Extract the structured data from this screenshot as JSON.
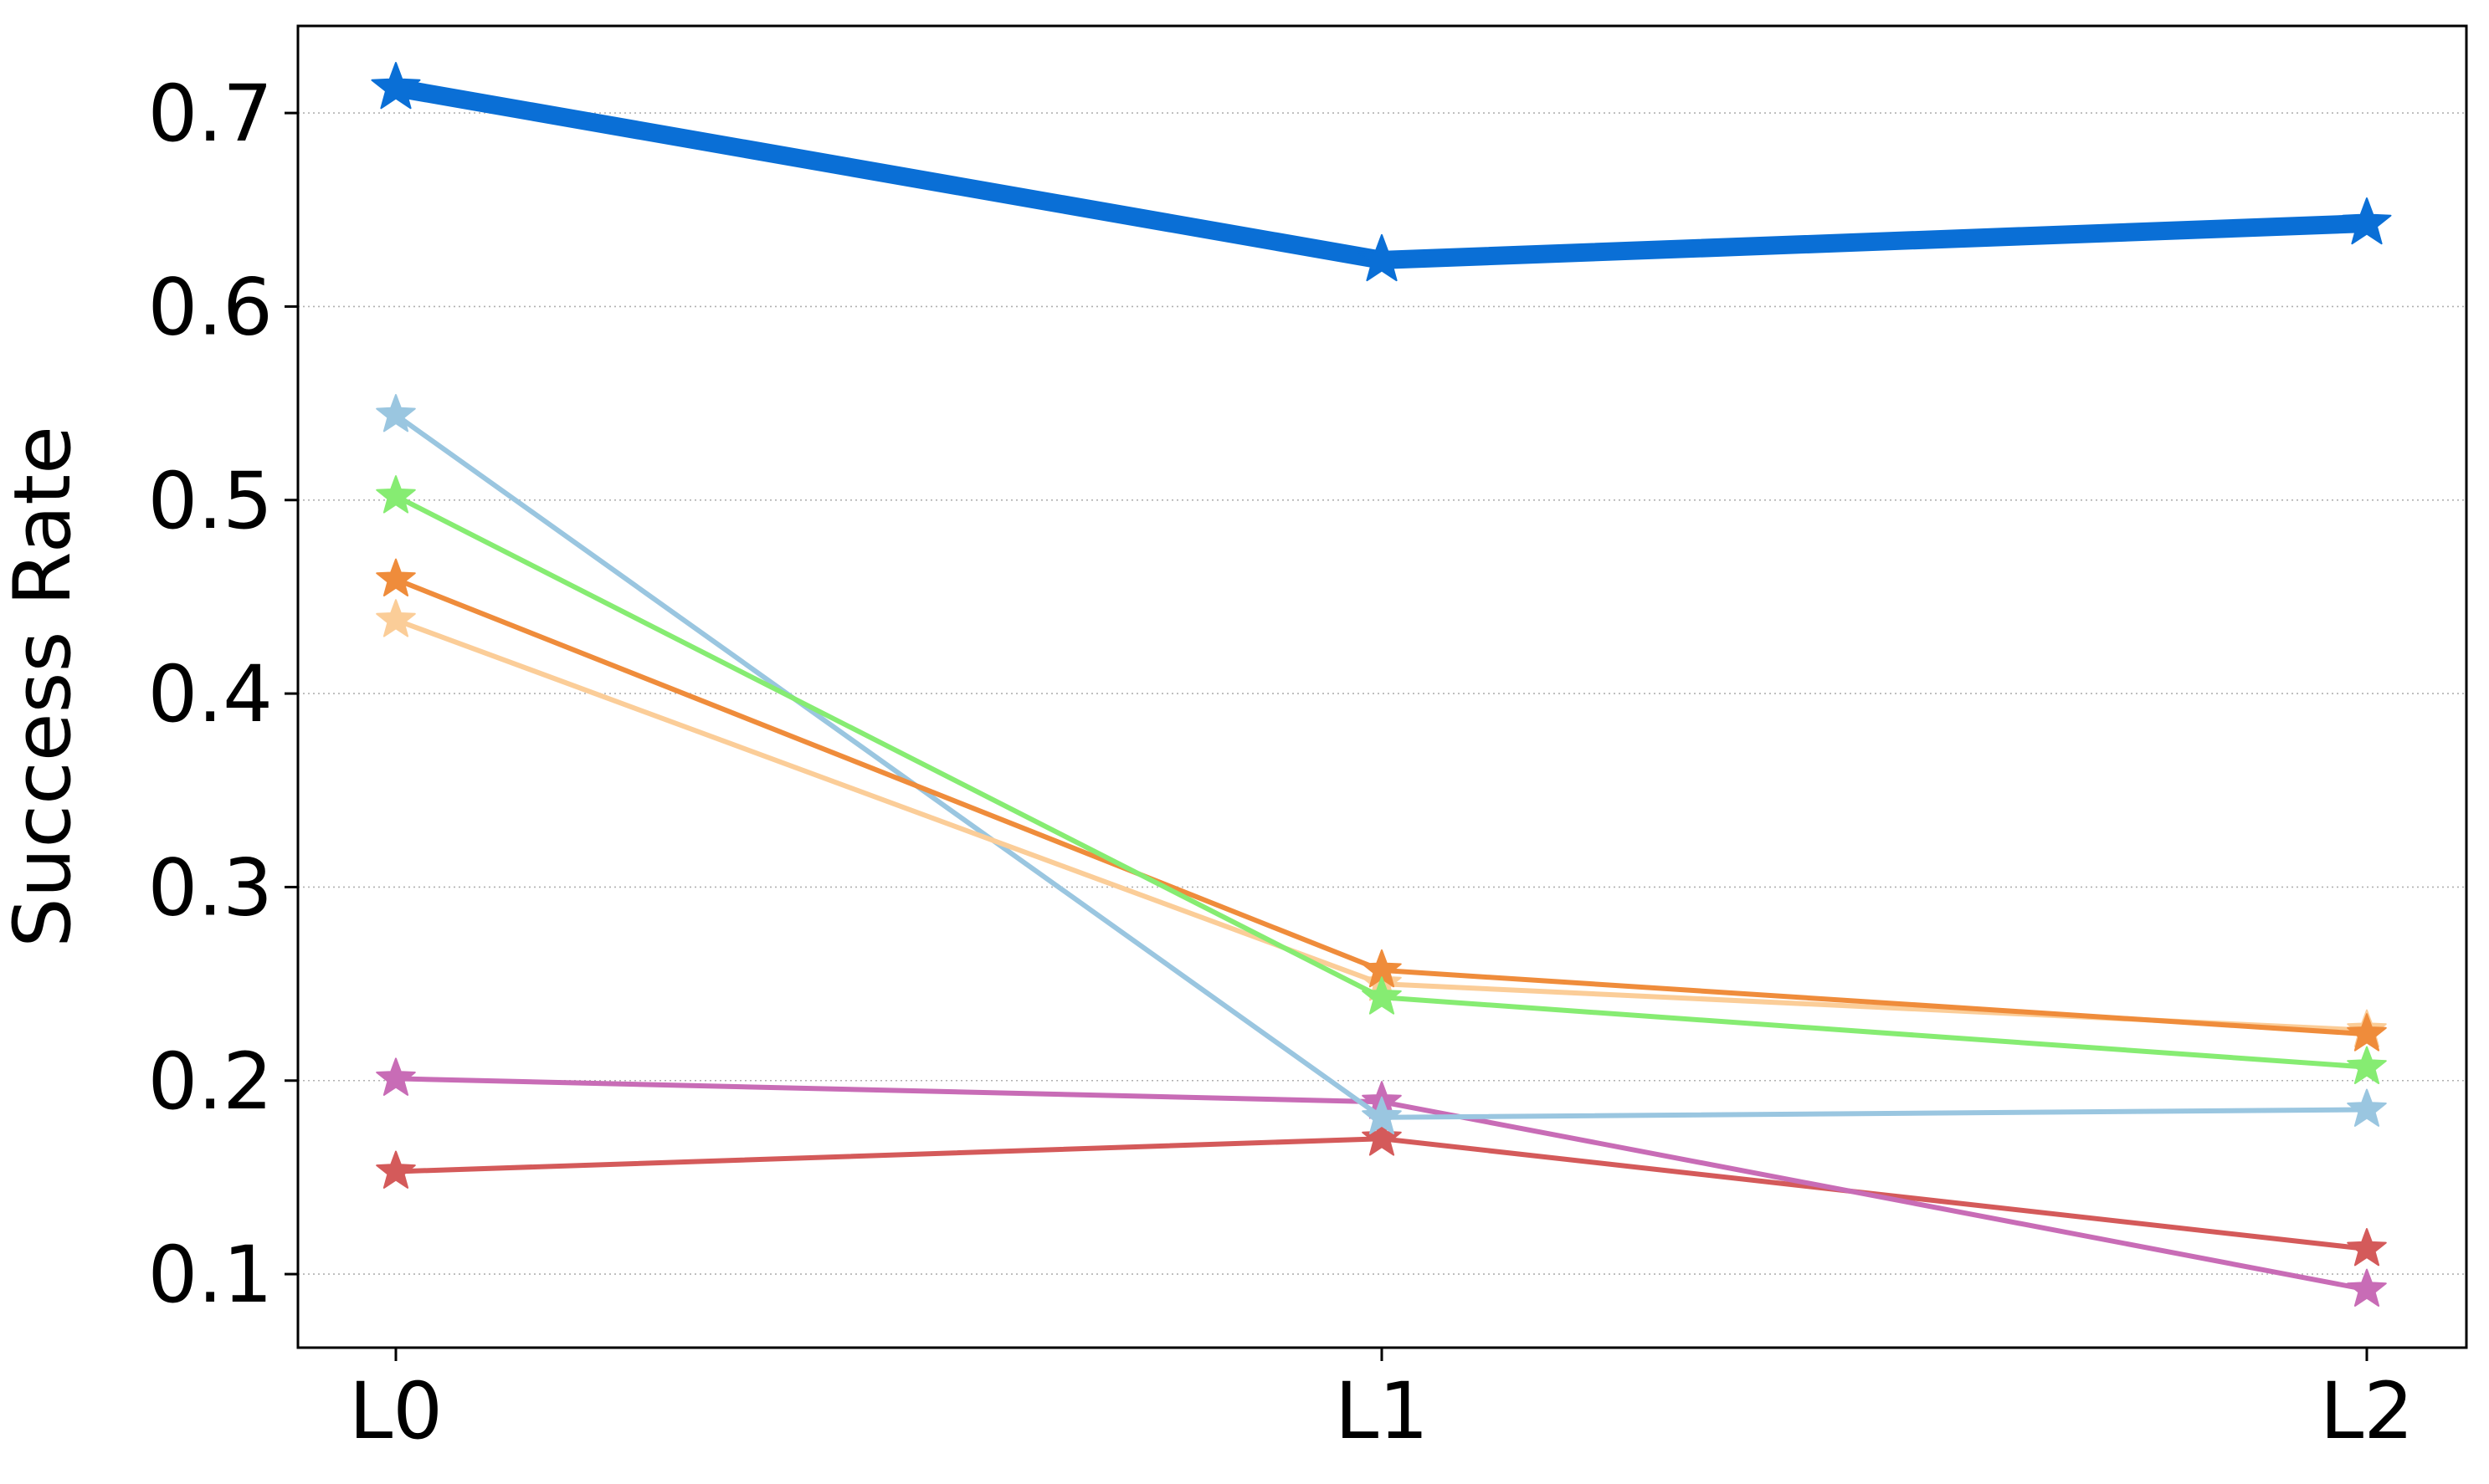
{
  "chart_data": {
    "type": "line",
    "x": [
      "L0",
      "L1",
      "L2"
    ],
    "ylabel": "Success Rate",
    "xlabel": "",
    "ylim": [
      0.062,
      0.745
    ],
    "yticks": [
      0.1,
      0.2,
      0.3,
      0.4,
      0.5,
      0.6,
      0.7
    ],
    "ytick_labels": [
      "0.1",
      "0.2",
      "0.3",
      "0.4",
      "0.5",
      "0.6",
      "0.7"
    ],
    "grid": "horizontal dotted",
    "marker": "star",
    "series": [
      {
        "color": "#d45a5a",
        "values": [
          0.153,
          0.17,
          0.113
        ],
        "width": "thin"
      },
      {
        "color": "#c86cb6",
        "values": [
          0.201,
          0.189,
          0.092
        ],
        "width": "thin"
      },
      {
        "color": "#9ac6e0",
        "values": [
          0.544,
          0.181,
          0.185
        ],
        "width": "thin"
      },
      {
        "color": "#fbcd98",
        "values": [
          0.438,
          0.25,
          0.226
        ],
        "width": "thin"
      },
      {
        "color": "#ef8c3b",
        "values": [
          0.459,
          0.257,
          0.224
        ],
        "width": "thin"
      },
      {
        "color": "#86ec72",
        "values": [
          0.502,
          0.243,
          0.207
        ],
        "width": "thin"
      },
      {
        "color": "#0a6fd6",
        "values": [
          0.713,
          0.624,
          0.643
        ],
        "width": "bold"
      }
    ]
  }
}
